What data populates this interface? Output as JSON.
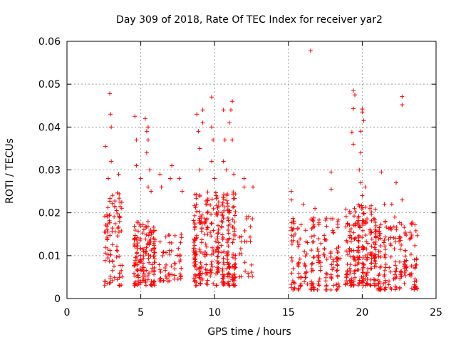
{
  "chart_data": {
    "type": "scatter",
    "title": "Day 309 of 2018, Rate Of TEC Index for receiver yar2",
    "xlabel": "GPS time / hours",
    "ylabel": "ROTI / TECUs",
    "xlim": [
      0,
      25
    ],
    "ylim": [
      0,
      0.06
    ],
    "xticks": [
      0,
      5,
      10,
      15,
      20,
      25
    ],
    "yticks": [
      0,
      0.01,
      0.02,
      0.03,
      0.04,
      0.05,
      0.06
    ],
    "xtick_labels": [
      "0",
      "5",
      "10",
      "15",
      "20",
      "25"
    ],
    "ytick_labels": [
      "0",
      "0.01",
      "0.02",
      "0.03",
      "0.04",
      "0.05",
      "0.06"
    ],
    "grid": true,
    "marker": "+",
    "series_color": "#ff0000",
    "clusters": [
      {
        "x": [
          2.5,
          3.8
        ],
        "y_range": [
          0.003,
          0.025
        ],
        "count": 90,
        "outliers": [
          [
            2.6,
            0.0355
          ],
          [
            2.9,
            0.0478
          ],
          [
            2.95,
            0.043
          ],
          [
            3.0,
            0.04
          ],
          [
            3.0,
            0.032
          ],
          [
            2.8,
            0.028
          ],
          [
            3.5,
            0.029
          ]
        ]
      },
      {
        "x": [
          4.5,
          6.0
        ],
        "y_range": [
          0.003,
          0.018
        ],
        "count": 160,
        "outliers": [
          [
            4.6,
            0.0425
          ],
          [
            4.7,
            0.037
          ],
          [
            4.7,
            0.031
          ],
          [
            5.0,
            0.028
          ],
          [
            5.3,
            0.042
          ],
          [
            5.4,
            0.039
          ],
          [
            5.5,
            0.04
          ],
          [
            5.4,
            0.034
          ],
          [
            5.5,
            0.037
          ],
          [
            5.6,
            0.03
          ],
          [
            5.5,
            0.026
          ],
          [
            5.7,
            0.025
          ]
        ]
      },
      {
        "x": [
          6.2,
          7.8
        ],
        "y_range": [
          0.004,
          0.015
        ],
        "count": 55,
        "outliers": [
          [
            6.3,
            0.029
          ],
          [
            6.4,
            0.026
          ],
          [
            7.1,
            0.031
          ],
          [
            7.0,
            0.028
          ],
          [
            7.6,
            0.028
          ],
          [
            7.8,
            0.025
          ]
        ]
      },
      {
        "x": [
          8.5,
          11.5
        ],
        "y_range": [
          0.003,
          0.025
        ],
        "count": 330,
        "outliers": [
          [
            8.8,
            0.043
          ],
          [
            8.9,
            0.039
          ],
          [
            9.0,
            0.035
          ],
          [
            9.0,
            0.03
          ],
          [
            9.2,
            0.044
          ],
          [
            9.2,
            0.041
          ],
          [
            9.8,
            0.047
          ],
          [
            9.8,
            0.04
          ],
          [
            9.9,
            0.037
          ],
          [
            9.8,
            0.032
          ],
          [
            10.0,
            0.028
          ],
          [
            10.6,
            0.044
          ],
          [
            10.7,
            0.037
          ],
          [
            10.6,
            0.032
          ],
          [
            10.8,
            0.03
          ],
          [
            11.2,
            0.046
          ],
          [
            11.1,
            0.044
          ],
          [
            11.2,
            0.037
          ],
          [
            11.0,
            0.041
          ],
          [
            11.3,
            0.029
          ]
        ]
      },
      {
        "x": [
          11.6,
          12.6
        ],
        "y_range": [
          0.005,
          0.02
        ],
        "count": 25,
        "outliers": [
          [
            12.0,
            0.028
          ],
          [
            12.0,
            0.026
          ],
          [
            12.6,
            0.026
          ]
        ]
      },
      {
        "x": [
          15.1,
          18.6
        ],
        "y_range": [
          0.002,
          0.019
        ],
        "count": 190,
        "outliers": [
          [
            16.5,
            0.0578
          ],
          [
            15.2,
            0.025
          ],
          [
            15.2,
            0.023
          ],
          [
            17.9,
            0.0295
          ],
          [
            17.9,
            0.0255
          ],
          [
            16.0,
            0.022
          ],
          [
            16.8,
            0.021
          ]
        ]
      },
      {
        "x": [
          18.8,
          21.0
        ],
        "y_range": [
          0.003,
          0.022
        ],
        "count": 230,
        "outliers": [
          [
            19.4,
            0.0485
          ],
          [
            19.5,
            0.0475
          ],
          [
            19.4,
            0.0443
          ],
          [
            20.0,
            0.0442
          ],
          [
            20.0,
            0.0435
          ],
          [
            20.1,
            0.0415
          ],
          [
            19.3,
            0.0388
          ],
          [
            19.9,
            0.039
          ],
          [
            19.4,
            0.036
          ],
          [
            19.9,
            0.034
          ],
          [
            19.8,
            0.03
          ],
          [
            19.9,
            0.027
          ],
          [
            20.2,
            0.026
          ],
          [
            20.0,
            0.024
          ]
        ]
      },
      {
        "x": [
          21.0,
          23.8
        ],
        "y_range": [
          0.002,
          0.018
        ],
        "count": 170,
        "outliers": [
          [
            22.7,
            0.0471
          ],
          [
            22.7,
            0.0452
          ],
          [
            21.3,
            0.0295
          ],
          [
            21.5,
            0.022
          ],
          [
            22.0,
            0.022
          ],
          [
            22.3,
            0.027
          ],
          [
            22.7,
            0.023
          ],
          [
            22.2,
            0.019
          ]
        ]
      }
    ]
  }
}
